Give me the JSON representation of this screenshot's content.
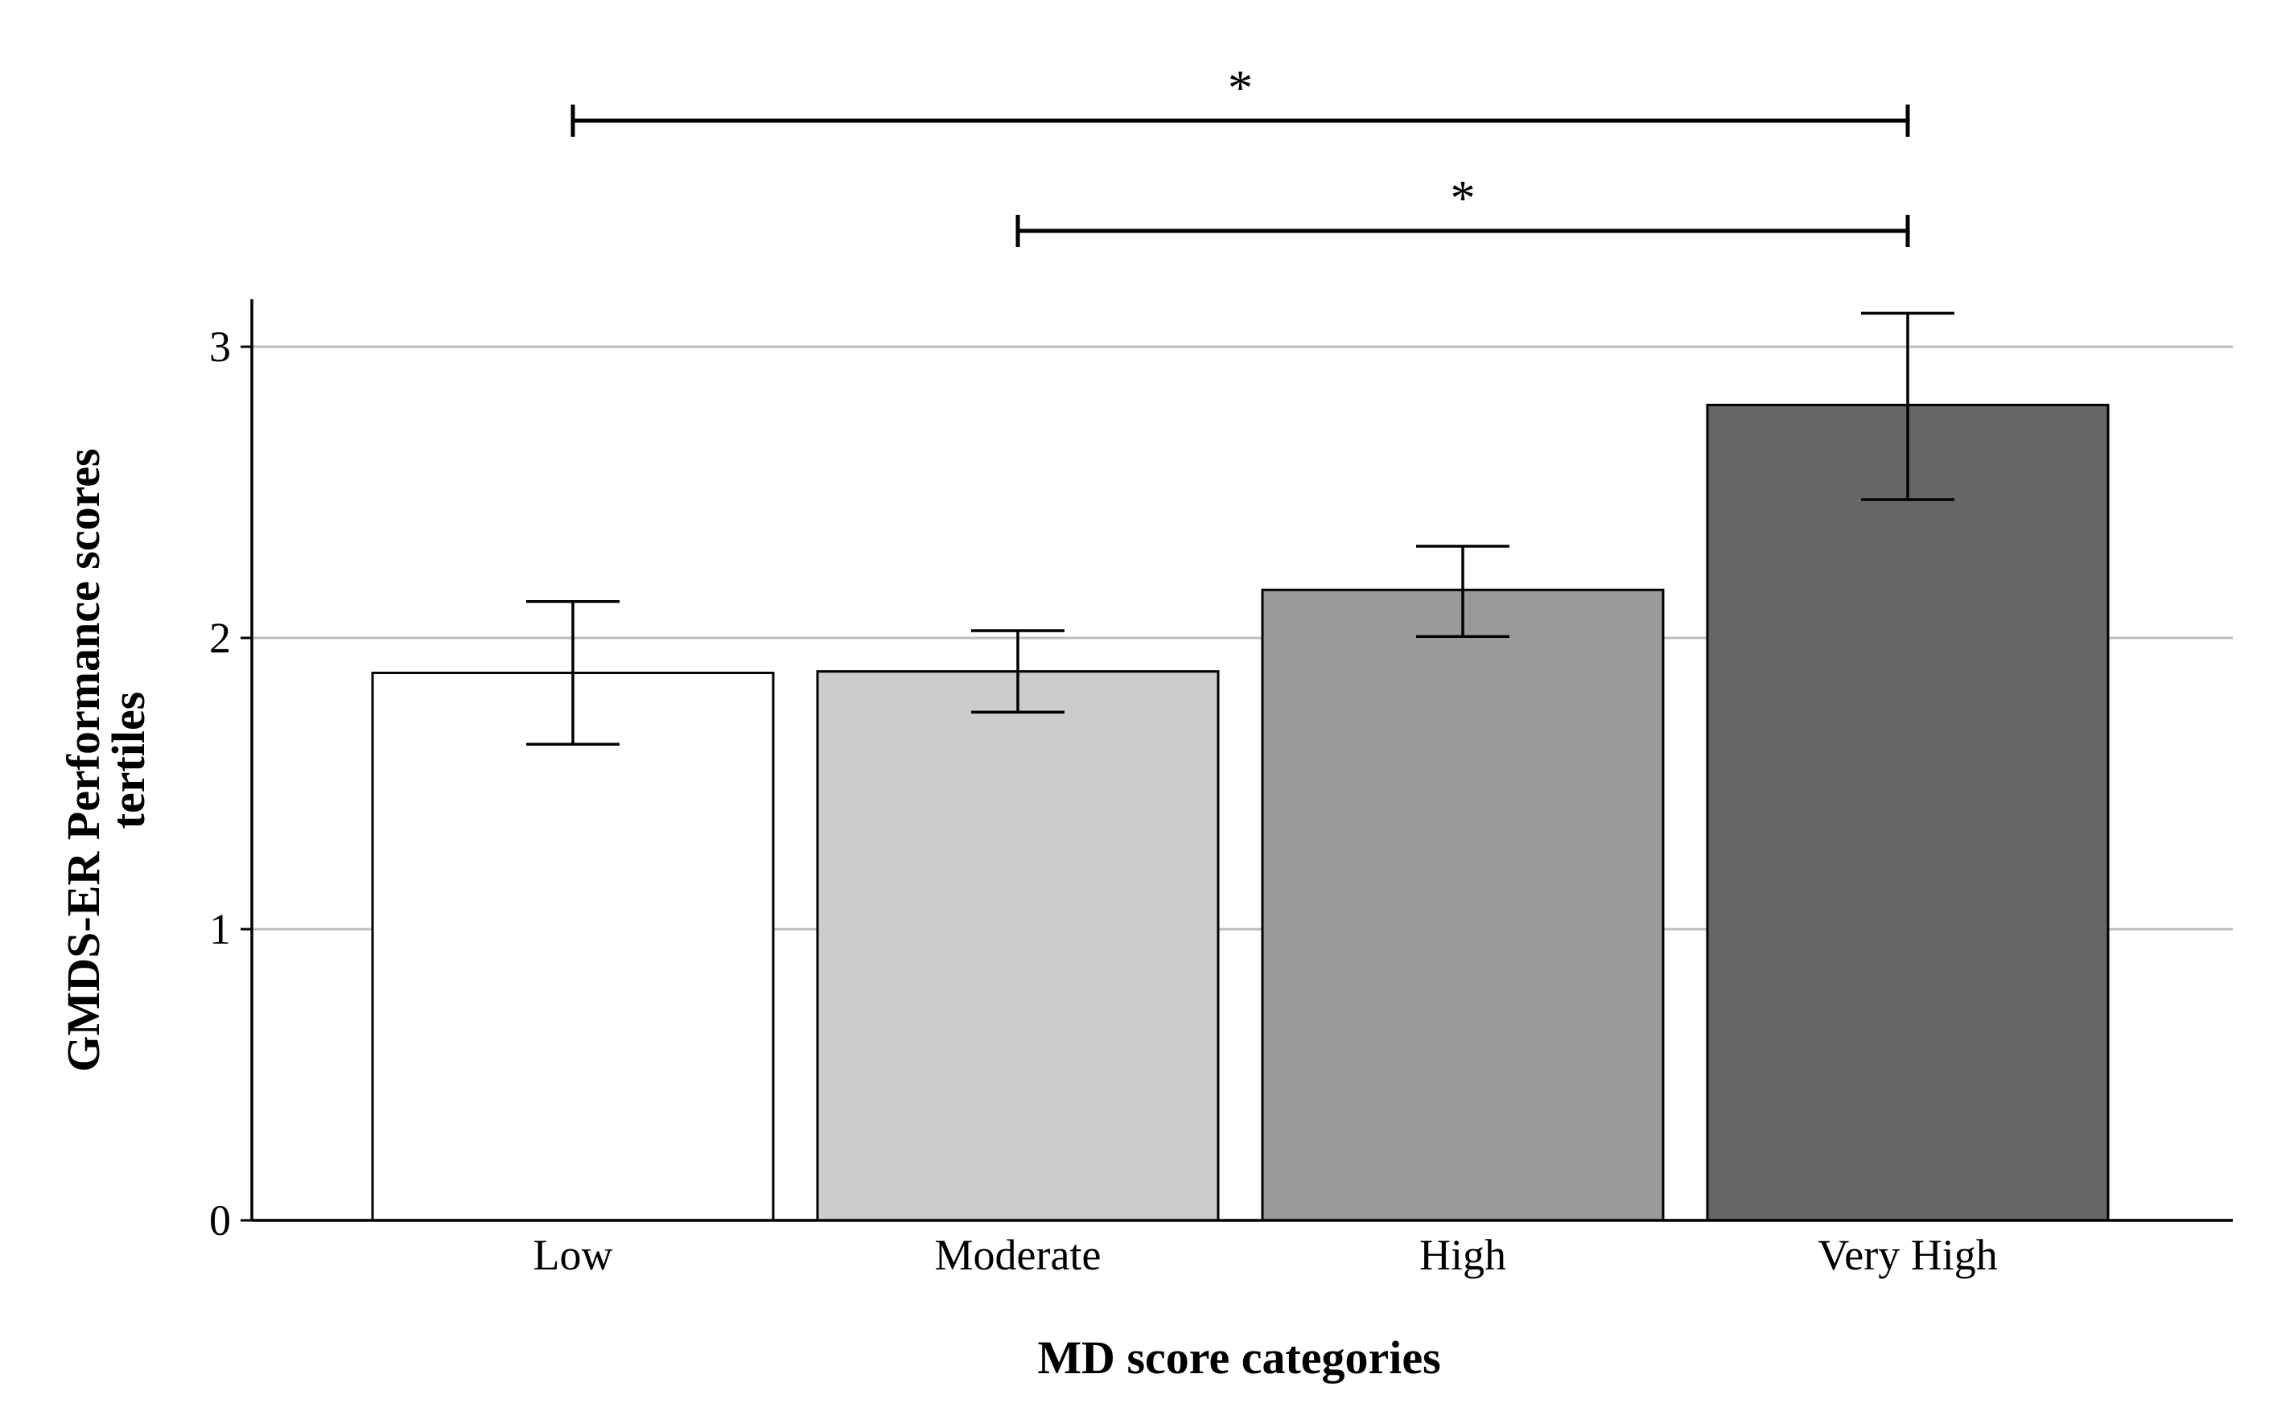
{
  "chart_data": {
    "type": "bar",
    "categories": [
      "Low",
      "Moderate",
      "High",
      "Very High"
    ],
    "values": [
      1.88,
      1.885,
      2.165,
      2.8
    ],
    "error_low": [
      1.635,
      1.745,
      2.005,
      2.475
    ],
    "error_high": [
      2.125,
      2.025,
      2.315,
      3.115
    ],
    "bar_colors": [
      "#ffffff",
      "#cccccc",
      "#999999",
      "#666666"
    ],
    "xlabel": "MD score categories",
    "ylabel_lines": [
      "GMDS-ER Performance scores",
      "tertiles"
    ],
    "ylim": [
      0,
      3.15
    ],
    "yticks": [
      0,
      1,
      2,
      3
    ],
    "ytick_labels": [
      "0",
      "1",
      "2",
      "3"
    ],
    "grid": true,
    "significance": [
      {
        "from": "Low",
        "to": "Very High",
        "label": "*"
      },
      {
        "from": "Moderate",
        "to": "Very High",
        "label": "*"
      }
    ]
  }
}
